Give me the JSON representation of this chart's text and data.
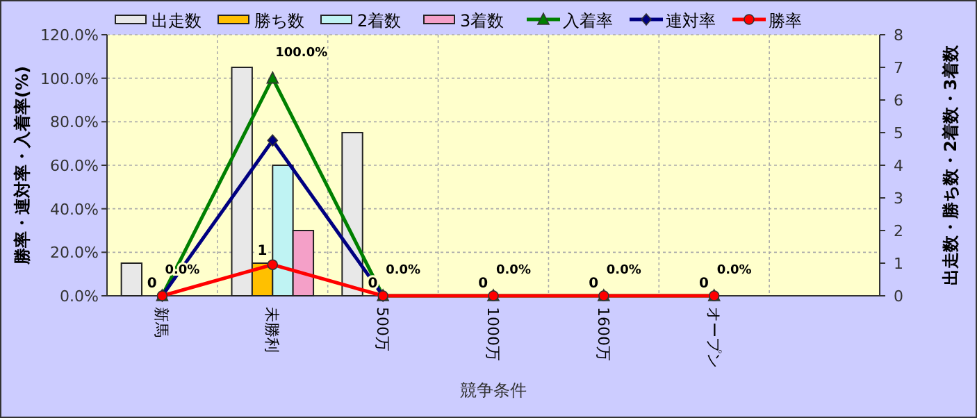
{
  "chart_data": {
    "type": "bar",
    "xlabel": "競争条件",
    "ylabel": "勝率・連対率・入着率(%)",
    "y2label": "出走数・勝ち数・2着数・3着数",
    "categories": [
      "新馬",
      "未勝利",
      "500万",
      "1000万",
      "1600万",
      "オープン",
      null
    ],
    "ylim": [
      0,
      120
    ],
    "yticks": [
      {
        "value": 0,
        "label": "0.0%"
      },
      {
        "value": 20,
        "label": "20.0%"
      },
      {
        "value": 40,
        "label": "40.0%"
      },
      {
        "value": 60,
        "label": "60.0%"
      },
      {
        "value": 80,
        "label": "80.0%"
      },
      {
        "value": 100,
        "label": "100.0%"
      },
      {
        "value": 120,
        "label": "120.0%"
      }
    ],
    "y2lim": [
      0,
      8
    ],
    "y2ticks": [
      0,
      1,
      2,
      3,
      4,
      5,
      6,
      7,
      8
    ],
    "grid": true,
    "legend": "top",
    "series": [
      {
        "name": "出走数",
        "axis": "y2",
        "color": "#e8e8e8",
        "values": [
          1,
          7,
          5,
          0,
          0,
          0,
          null
        ]
      },
      {
        "name": "勝ち数",
        "axis": "y2",
        "color": "#ffc000",
        "values": [
          0,
          1,
          0,
          0,
          0,
          0,
          null
        ],
        "value_labels": [
          "0",
          "1",
          "0",
          "0",
          "0",
          "0",
          null
        ]
      },
      {
        "name": "2着数",
        "axis": "y2",
        "color": "#bff3f3",
        "values": [
          0,
          4,
          0,
          0,
          0,
          0,
          null
        ]
      },
      {
        "name": "3着数",
        "axis": "y2",
        "color": "#f4a0c8",
        "values": [
          0,
          2,
          0,
          0,
          0,
          0,
          null
        ]
      },
      {
        "name": "入着率",
        "type": "line",
        "color": "#008000",
        "marker": "triangle",
        "values": [
          0,
          100,
          0,
          0,
          0,
          0,
          null
        ],
        "value_labels": [
          "0.0%",
          "100.0%",
          "0.0%",
          "0.0%",
          "0.0%",
          "0.0%",
          null
        ]
      },
      {
        "name": "連対率",
        "type": "line",
        "color": "#000080",
        "marker": "diamond",
        "values": [
          0,
          71.4,
          0,
          null,
          null,
          null,
          null
        ]
      },
      {
        "name": "勝率",
        "type": "line",
        "color": "#ff0000",
        "marker": "circle",
        "values": [
          0,
          14.3,
          0,
          0,
          0,
          0,
          null
        ]
      }
    ]
  }
}
